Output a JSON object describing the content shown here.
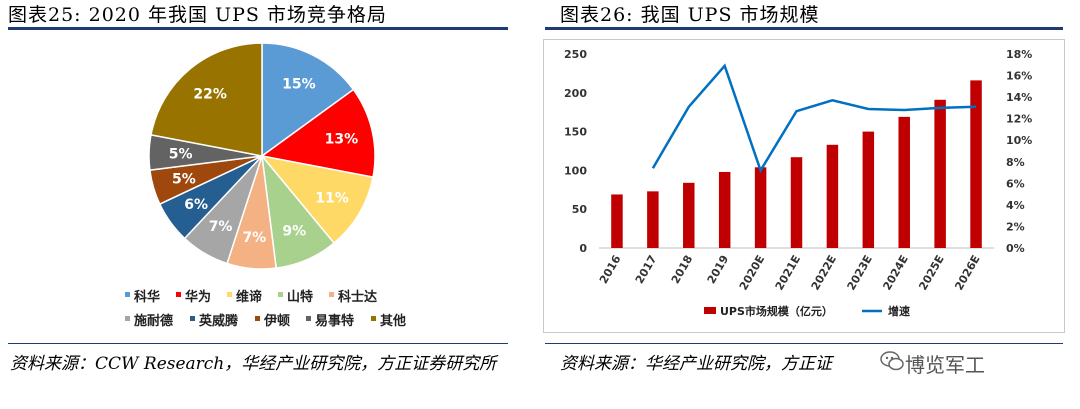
{
  "left": {
    "title": "图表25:   2020 年我国 UPS 市场竞争格局",
    "source": "资料来源：CCW Research，华经产业研究院，方正证券研究所"
  },
  "right": {
    "title": "图表26:   我国 UPS 市场规模",
    "source": "资料来源：华经产业研究院，方正证",
    "watermark": "博览军工"
  },
  "chart_data": [
    {
      "type": "pie",
      "title": "",
      "slices": [
        {
          "label": "科华",
          "value": 15,
          "display": "15%",
          "color": "#5b9bd5"
        },
        {
          "label": "华为",
          "value": 13,
          "display": "13%",
          "color": "#ff0000"
        },
        {
          "label": "维谛",
          "value": 11,
          "display": "11%",
          "color": "#ffd966"
        },
        {
          "label": "山特",
          "value": 9,
          "display": "9%",
          "color": "#a9d18e"
        },
        {
          "label": "科士达",
          "value": 7,
          "display": "7%",
          "color": "#f4b183"
        },
        {
          "label": "施耐德",
          "value": 7,
          "display": "7%",
          "color": "#a6a6a6"
        },
        {
          "label": "英威腾",
          "value": 6,
          "display": "6%",
          "color": "#255e91"
        },
        {
          "label": "伊顿",
          "value": 5,
          "display": "5%",
          "color": "#9e480e"
        },
        {
          "label": "易事特",
          "value": 5,
          "display": "5%",
          "color": "#636363"
        },
        {
          "label": "其他",
          "value": 22,
          "display": "22%",
          "color": "#997300"
        }
      ],
      "legend_placement": "bottom"
    },
    {
      "type": "bar",
      "title": "",
      "categories": [
        "2016",
        "2017",
        "2018",
        "2019",
        "2020E",
        "2021E",
        "2022E",
        "2023E",
        "2024E",
        "2025E",
        "2026E"
      ],
      "series": [
        {
          "name": "UPS市场规模（亿元）",
          "type": "bar",
          "axis": "left",
          "color": "#c00000",
          "values": [
            69,
            73,
            84,
            98,
            104,
            117,
            133,
            150,
            169,
            191,
            216
          ]
        },
        {
          "name": "增速",
          "type": "line",
          "axis": "right",
          "color": "#0070c0",
          "values": [
            null,
            7.4,
            13.1,
            16.9,
            7.2,
            12.7,
            13.7,
            12.9,
            12.8,
            13.0,
            13.1
          ]
        }
      ],
      "y_left": {
        "min": 0,
        "max": 250,
        "ticks": [
          0,
          50,
          100,
          150,
          200,
          250
        ]
      },
      "y_right": {
        "min": 0,
        "max": 18,
        "ticks": [
          "0%",
          "2%",
          "4%",
          "6%",
          "8%",
          "10%",
          "12%",
          "14%",
          "16%",
          "18%"
        ]
      },
      "grid": false,
      "legend_placement": "bottom"
    }
  ]
}
